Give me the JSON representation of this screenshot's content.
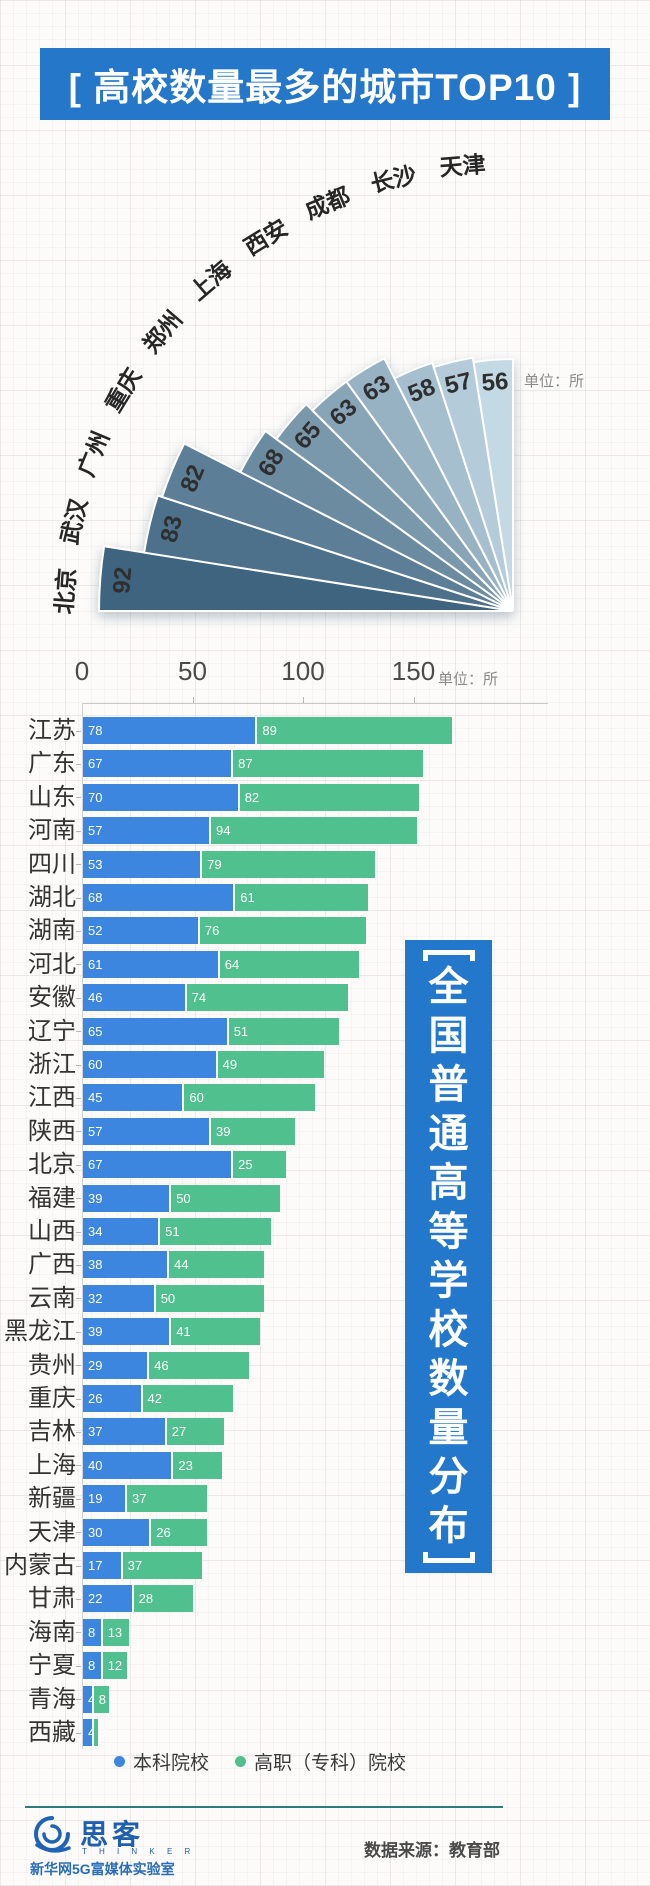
{
  "header": {
    "title": "[ 高校数量最多的城市TOP10 ]"
  },
  "chart_data": [
    {
      "type": "bar",
      "variant": "radial-fan",
      "title": "高校数量最多的城市TOP10",
      "unit": "单位：所",
      "categories": [
        "北京",
        "武汉",
        "广州",
        "重庆",
        "郑州",
        "上海",
        "西安",
        "成都",
        "长沙",
        "天津"
      ],
      "values": [
        92,
        83,
        82,
        68,
        65,
        63,
        63,
        58,
        57,
        56
      ],
      "color_dark": "#3f6480",
      "color_light": "#c3d9e4"
    },
    {
      "type": "bar",
      "orientation": "horizontal",
      "stacked": true,
      "unit": "单位：所",
      "x_ticks": [
        0,
        50,
        100,
        150
      ],
      "xlim": [
        0,
        167
      ],
      "categories": [
        "江苏",
        "广东",
        "山东",
        "河南",
        "四川",
        "湖北",
        "湖南",
        "河北",
        "安徽",
        "辽宁",
        "浙江",
        "江西",
        "陕西",
        "北京",
        "福建",
        "山西",
        "广西",
        "云南",
        "黑龙江",
        "贵州",
        "重庆",
        "吉林",
        "上海",
        "新疆",
        "天津",
        "内蒙古",
        "甘肃",
        "海南",
        "宁夏",
        "青海",
        "西藏"
      ],
      "series": [
        {
          "name": "本科院校",
          "color": "#3c86df",
          "values": [
            78,
            67,
            70,
            57,
            53,
            68,
            52,
            61,
            46,
            65,
            60,
            45,
            57,
            67,
            39,
            34,
            38,
            32,
            39,
            29,
            26,
            37,
            40,
            19,
            30,
            17,
            22,
            8,
            8,
            4,
            4
          ]
        },
        {
          "name": "高职（专科）院校",
          "color": "#4fc08e",
          "values": [
            89,
            87,
            82,
            94,
            79,
            61,
            76,
            64,
            74,
            51,
            49,
            60,
            39,
            25,
            50,
            51,
            44,
            50,
            41,
            46,
            42,
            27,
            23,
            37,
            26,
            37,
            28,
            13,
            12,
            8,
            3
          ]
        }
      ]
    }
  ],
  "side_banner": {
    "text": "全国普通高等学校数量分布",
    "bg": "#2478cb"
  },
  "footer": {
    "brand": "思客",
    "brand_sub": "T H I N K E R",
    "org": "新华网5G富媒体实验室",
    "source": "数据来源：教育部"
  },
  "colors": {
    "title_banner": "#2577c9",
    "bar_blue": "#3c86df",
    "bar_green": "#4fc08e",
    "footer_line": "#2f7a80"
  }
}
